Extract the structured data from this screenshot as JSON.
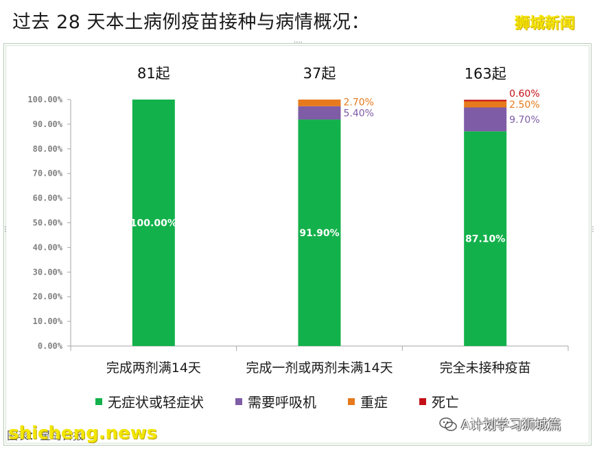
{
  "header": {
    "title": "过去 28 天本土病例疫苗接种与病情概况：",
    "brand": "狮城新闻"
  },
  "source": {
    "text": "图表：星岛日报"
  },
  "watermarks": {
    "site": "shicheng.news",
    "account": "A计划学习狮城篇",
    "account_icon": "wechat-icon"
  },
  "colors": {
    "asymptomatic": "#13b14b",
    "ventilator": "#7e5ca6",
    "severe": "#e67a1c",
    "death": "#c40f16"
  },
  "chart_data": {
    "type": "bar",
    "stacked": true,
    "title": "",
    "xlabel": "",
    "ylabel": "",
    "ylim": [
      0,
      100
    ],
    "yticks": [
      "0.00%",
      "10.00%",
      "20.00%",
      "30.00%",
      "40.00%",
      "50.00%",
      "60.00%",
      "70.00%",
      "80.00%",
      "90.00%",
      "100.00%"
    ],
    "categories": [
      "完成两剂满14天",
      "完成一剂或两剂未满14天",
      "完全未接种疫苗"
    ],
    "counts": [
      "81起",
      "37起",
      "163起"
    ],
    "legend_position": "bottom",
    "grid": false,
    "series": [
      {
        "name": "无症状或轻症状",
        "color": "#13b14b",
        "values": [
          100.0,
          91.9,
          87.1
        ],
        "labels": [
          "100.00%",
          "91.90%",
          "87.10%"
        ]
      },
      {
        "name": "需要呼吸机",
        "color": "#7e5ca6",
        "values": [
          0,
          5.4,
          9.7
        ],
        "labels": [
          "",
          "5.40%",
          "9.70%"
        ]
      },
      {
        "name": "重症",
        "color": "#e67a1c",
        "values": [
          0,
          2.7,
          2.5
        ],
        "labels": [
          "",
          "2.70%",
          "2.50%"
        ]
      },
      {
        "name": "死亡",
        "color": "#c40f16",
        "values": [
          0,
          0,
          0.6
        ],
        "labels": [
          "",
          "",
          "0.60%"
        ]
      }
    ]
  }
}
